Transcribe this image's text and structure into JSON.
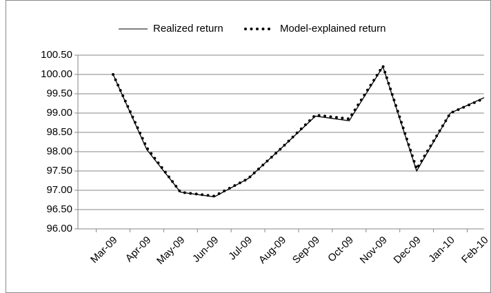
{
  "chart_data": {
    "type": "line",
    "categories": [
      "Mar-09",
      "Apr-09",
      "May-09",
      "Jun-09",
      "Jul-09",
      "Aug-09",
      "Sep-09",
      "Oct-09",
      "Nov-09",
      "Dec-09",
      "Jan-10",
      "Feb-10"
    ],
    "series": [
      {
        "name": "Realized return",
        "color": "#000000",
        "values": [
          100.0,
          98.05,
          96.95,
          96.83,
          97.3,
          98.1,
          98.92,
          98.8,
          100.2,
          97.5,
          99.0,
          99.4
        ]
      },
      {
        "name": "Model-explained return",
        "color": "#000000",
        "values": [
          100.0,
          98.1,
          96.95,
          96.85,
          97.3,
          98.1,
          98.95,
          98.85,
          100.22,
          97.55,
          99.0,
          99.38
        ]
      }
    ],
    "ylim": [
      96,
      100.5
    ],
    "yticks": [
      {
        "value": 96,
        "label": "96.00"
      },
      {
        "value": 96.5,
        "label": "96.50"
      },
      {
        "value": 97,
        "label": "97.00"
      },
      {
        "value": 97.5,
        "label": "97.50"
      },
      {
        "value": 98,
        "label": "98.00"
      },
      {
        "value": 98.5,
        "label": "98.50"
      },
      {
        "value": 99,
        "label": "99.00"
      },
      {
        "value": 99.5,
        "label": "99.50"
      },
      {
        "value": 100,
        "label": "100.00"
      },
      {
        "value": 100.5,
        "label": "100.50"
      }
    ],
    "grid": true,
    "legend": "top"
  }
}
